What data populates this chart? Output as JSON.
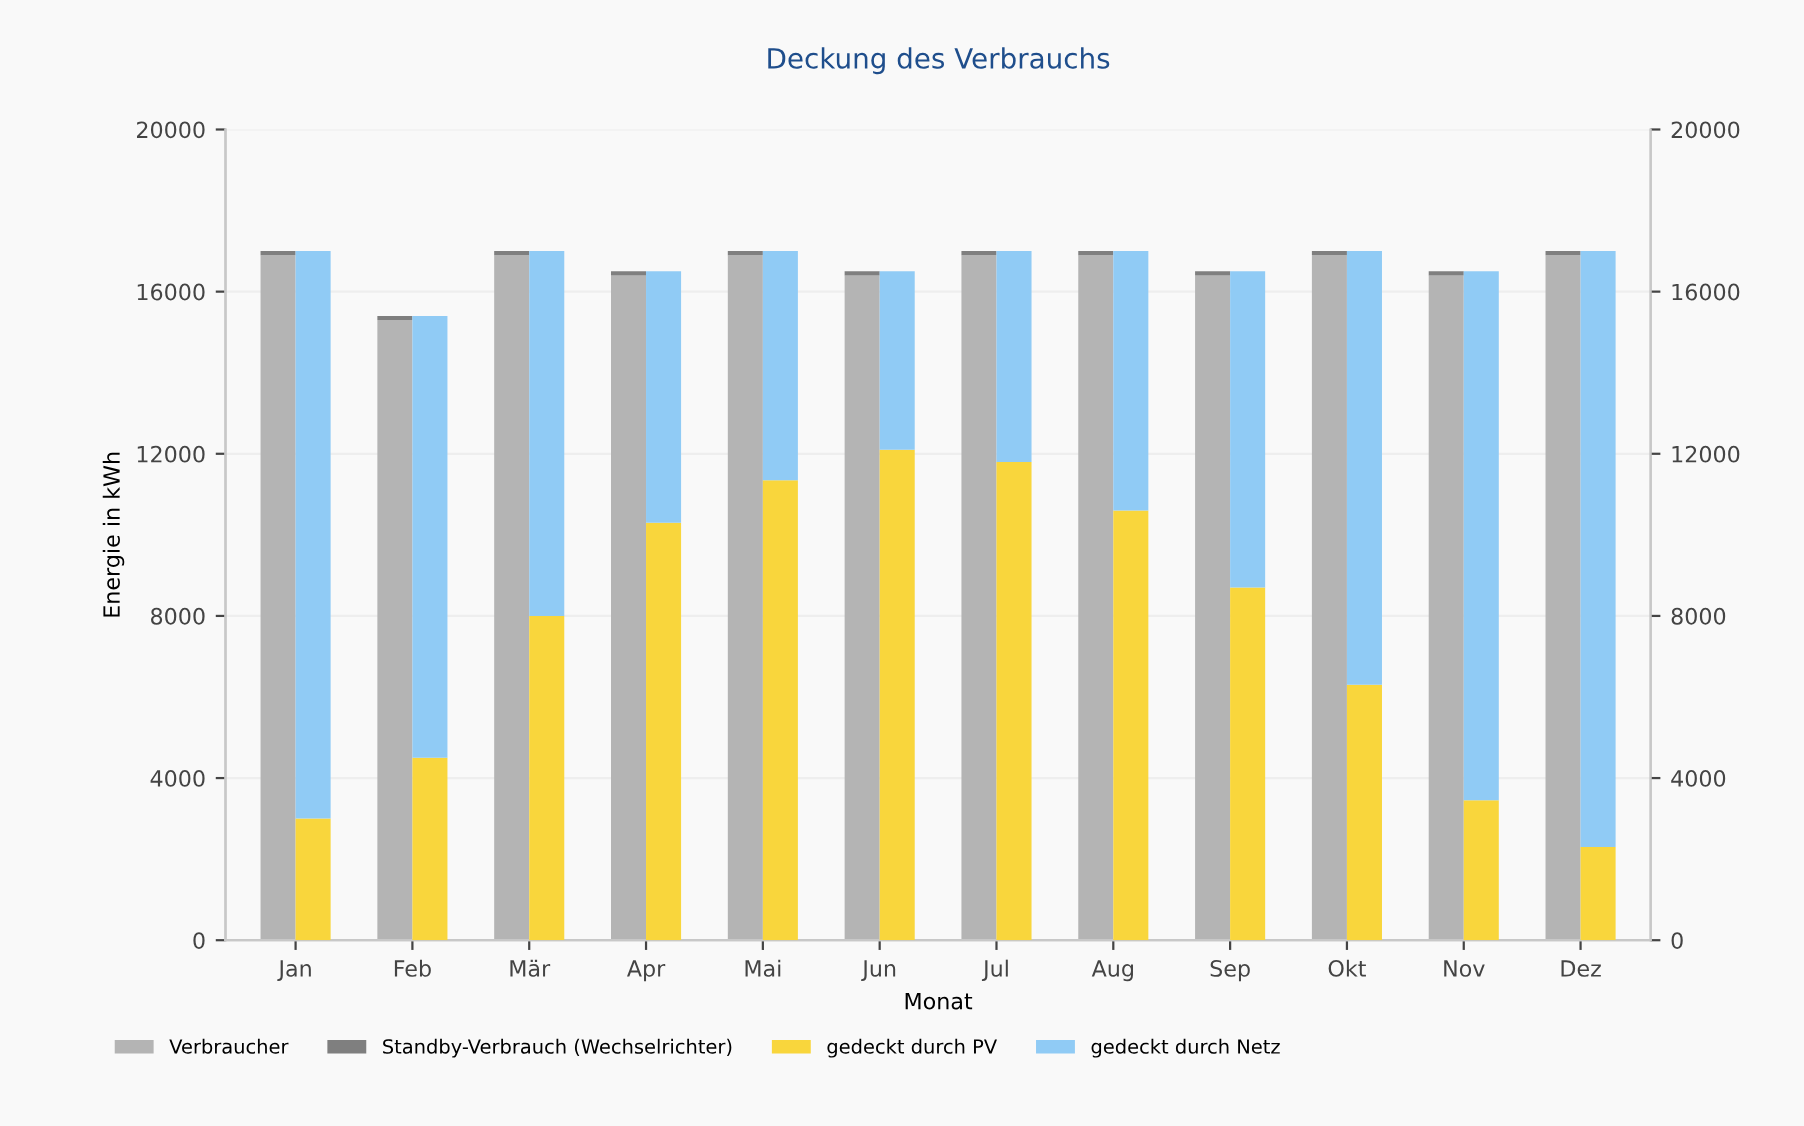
{
  "chart_data": {
    "type": "bar",
    "title": "Deckung des Verbrauchs",
    "xlabel": "Monat",
    "ylabel": "Energie in kWh",
    "categories": [
      "Jan",
      "Feb",
      "Mär",
      "Apr",
      "Mai",
      "Jun",
      "Jul",
      "Aug",
      "Sep",
      "Okt",
      "Nov",
      "Dez"
    ],
    "stacked": true,
    "series": [
      {
        "name": "Verbraucher",
        "color": "#b4b4b4",
        "axis": "y",
        "values": [
          16900,
          15300,
          16900,
          16400,
          16900,
          16400,
          16900,
          16900,
          16400,
          16900,
          16400,
          16900
        ]
      },
      {
        "name": "Standby-Verbrauch (Wechselrichter)",
        "color": "#7f7f7f",
        "axis": "y",
        "values": [
          100,
          100,
          100,
          100,
          100,
          100,
          100,
          100,
          100,
          100,
          100,
          100
        ]
      },
      {
        "name": "gedeckt durch PV",
        "color": "#f9d63c",
        "axis": "y2",
        "values": [
          3000,
          4500,
          8000,
          10300,
          11350,
          12100,
          11800,
          10600,
          8700,
          6300,
          3450,
          2300
        ]
      },
      {
        "name": "gedeckt durch Netz",
        "color": "#90cbf5",
        "axis": "y2",
        "values": [
          14000,
          10900,
          9000,
          6200,
          5650,
          4400,
          5200,
          6400,
          7800,
          10700,
          13050,
          14700
        ]
      }
    ],
    "ylim": [
      0,
      20000
    ],
    "yticks": [
      0,
      4000,
      8000,
      12000,
      16000,
      20000
    ],
    "y2lim": [
      0,
      20000
    ],
    "y2ticks": [
      0,
      4000,
      8000,
      12000,
      16000,
      20000
    ],
    "grid": "y",
    "legend": "bottom left"
  }
}
